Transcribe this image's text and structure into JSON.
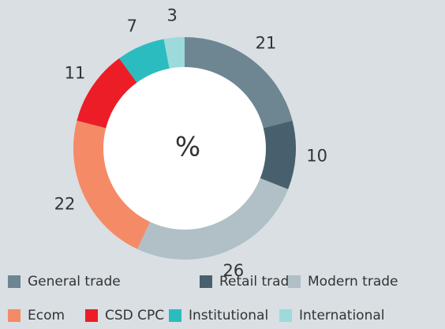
{
  "chart_data": {
    "type": "donut",
    "center_label": "%",
    "categories": [
      "General trade",
      "Retail trade",
      "Modern trade",
      "Ecom",
      "CSD CPC",
      "Institutional",
      "International"
    ],
    "values": [
      21,
      10,
      26,
      22,
      11,
      7,
      3
    ],
    "colors": [
      "#6e8592",
      "#48606d",
      "#b1bfc6",
      "#f58a67",
      "#ec1d26",
      "#2bbcc0",
      "#9ddadb"
    ],
    "legend": "bottom"
  }
}
